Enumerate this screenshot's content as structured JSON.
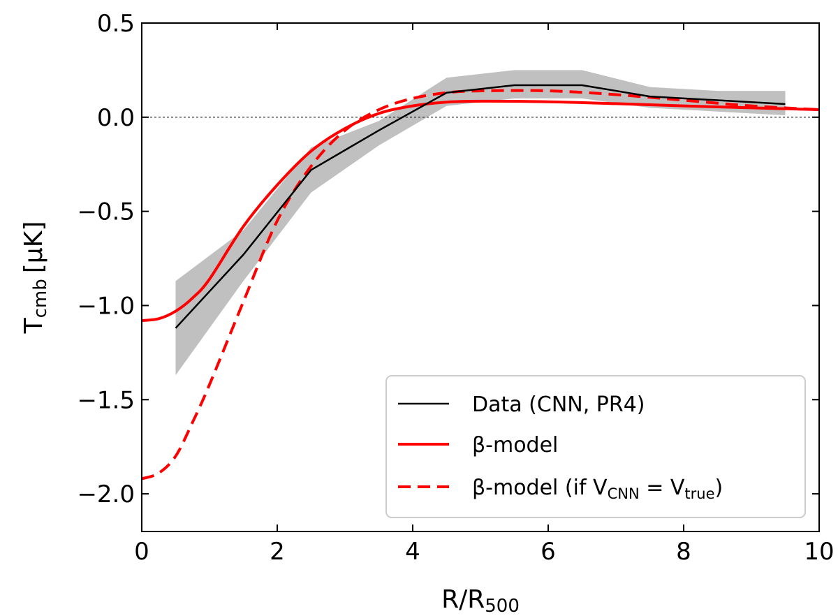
{
  "chart_data": {
    "type": "line",
    "xlabel": "R/R",
    "xlabel_sub": "500",
    "ylabel": "T",
    "ylabel_sub": "cmb",
    "ylabel_unit": "[μK]",
    "xlim": [
      0,
      10
    ],
    "ylim": [
      -2.2,
      0.5
    ],
    "xticks": [
      0,
      2,
      4,
      6,
      8,
      10
    ],
    "xtick_labels": [
      "0",
      "2",
      "4",
      "6",
      "8",
      "10"
    ],
    "yticks": [
      0.5,
      0.0,
      -0.5,
      -1.0,
      -1.5,
      -2.0
    ],
    "ytick_labels": [
      "0.5",
      "0.0",
      "−0.5",
      "−1.0",
      "−1.5",
      "−2.0"
    ],
    "zero_line": true,
    "legend_position": "lower-right",
    "data_band": {
      "x": [
        0.5,
        1.5,
        2.5,
        3.5,
        4.5,
        5.5,
        6.5,
        7.5,
        8.5,
        9.5
      ],
      "upper": [
        -0.87,
        -0.6,
        -0.16,
        -0.02,
        0.21,
        0.25,
        0.25,
        0.16,
        0.14,
        0.14
      ],
      "lower": [
        -1.37,
        -0.87,
        -0.4,
        -0.15,
        0.06,
        0.1,
        0.1,
        0.05,
        0.03,
        0.01
      ]
    },
    "series": [
      {
        "name": "Data (CNN, PR4)",
        "style": "solid",
        "color": "#000000",
        "x": [
          0.5,
          1.5,
          2.5,
          3.5,
          4.5,
          5.5,
          6.5,
          7.5,
          8.5,
          9.5
        ],
        "y": [
          -1.12,
          -0.73,
          -0.28,
          -0.07,
          0.13,
          0.17,
          0.17,
          0.11,
          0.09,
          0.07
        ]
      },
      {
        "name": "β-model",
        "style": "solid",
        "color": "#ff0000",
        "x": [
          0,
          0.25,
          0.5,
          0.75,
          1.0,
          1.5,
          2.0,
          2.5,
          3.0,
          3.5,
          4.0,
          4.5,
          5.0,
          6.0,
          7.0,
          8.0,
          9.0,
          10.0
        ],
        "y": [
          -1.08,
          -1.07,
          -1.03,
          -0.96,
          -0.86,
          -0.58,
          -0.36,
          -0.18,
          -0.06,
          0.02,
          0.06,
          0.08,
          0.085,
          0.082,
          0.072,
          0.06,
          0.05,
          0.04
        ]
      },
      {
        "name": "β-model (if V",
        "name_sub": "CNN",
        "name_mid": " = V",
        "name_sub2": "true",
        "name_end": ")",
        "style": "dashed",
        "color": "#ff0000",
        "x": [
          0,
          0.25,
          0.5,
          0.75,
          1.0,
          1.5,
          2.0,
          2.5,
          3.0,
          3.5,
          4.0,
          4.5,
          5.0,
          6.0,
          7.0,
          8.0,
          9.0,
          10.0
        ],
        "y": [
          -1.92,
          -1.89,
          -1.8,
          -1.62,
          -1.42,
          -0.98,
          -0.55,
          -0.26,
          -0.07,
          0.04,
          0.1,
          0.13,
          0.14,
          0.14,
          0.12,
          0.09,
          0.06,
          0.04
        ]
      }
    ],
    "legend": [
      {
        "label": "Data (CNN, PR4)"
      },
      {
        "label": "β-model"
      },
      {
        "label": "β-model (if V",
        "sub1": "CNN",
        "mid": " = V",
        "sub2": "true",
        "end": ")"
      }
    ]
  }
}
